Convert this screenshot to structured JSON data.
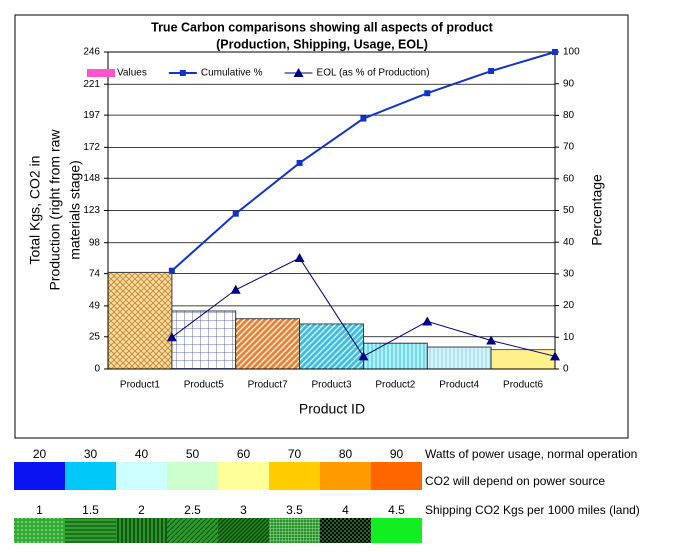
{
  "chart_data": {
    "type": "pareto",
    "title": [
      "True Carbon comparisons showing all aspects of product",
      "(Production, Shipping, Usage, EOL)"
    ],
    "xlabel": "Product ID",
    "ylabel": [
      "Total Kgs, CO2 in",
      "Production (right from raw",
      "materials stage)"
    ],
    "y2label": "Percentage",
    "categories": [
      "Product1",
      "Product5",
      "Product7",
      "Product3",
      "Product2",
      "Product4",
      "Product6"
    ],
    "bar_colors": [
      "#f2dc98",
      "#ffffff",
      "#e8843a",
      "#3cbfe0",
      "#6fdcec",
      "#d2f4fc",
      "#fff08c"
    ],
    "series": [
      {
        "name": "Values",
        "color": "#ff55cc",
        "values": [
          75,
          45,
          39,
          35,
          20,
          17,
          15
        ]
      },
      {
        "name": "Cumulative %",
        "color": "#1133cc",
        "axis": "y2",
        "values": [
          31,
          49,
          65,
          79,
          87,
          94,
          100
        ]
      },
      {
        "name": "EOL (as % of Production)",
        "color": "#000080",
        "axis": "y2",
        "values": [
          10,
          25,
          35,
          4,
          15,
          9,
          4
        ]
      }
    ],
    "ylim": [
      0,
      246
    ],
    "yticks": [
      0,
      25,
      49,
      74,
      98,
      123,
      148,
      172,
      197,
      221,
      246
    ],
    "y2lim": [
      0,
      100
    ],
    "y2ticks": [
      0,
      10,
      20,
      30,
      40,
      50,
      60,
      70,
      80,
      90,
      100
    ],
    "grid": true
  },
  "power_legend": {
    "label": "Watts of power usage, normal operation",
    "note": "CO2 will depend on power source",
    "values": [
      "20",
      "30",
      "40",
      "50",
      "60",
      "70",
      "80",
      "90"
    ],
    "colors": [
      "#0a14f0",
      "#00c8f8",
      "#ccffff",
      "#ccffcc",
      "#ffff99",
      "#ffcc00",
      "#ff9a00",
      "#ff6600"
    ]
  },
  "shipping_legend": {
    "label": "Shipping CO2 Kgs per 1000 miles (land)",
    "values": [
      "1",
      "1.5",
      "2",
      "2.5",
      "3",
      "3.5",
      "4",
      "4.5"
    ],
    "colors": [
      "#33aa33",
      "#2f9e2f",
      "#2a962a",
      "#2c9a2c",
      "#228822",
      "#2a922a",
      "#1a6a1a",
      "#11ee22"
    ]
  }
}
